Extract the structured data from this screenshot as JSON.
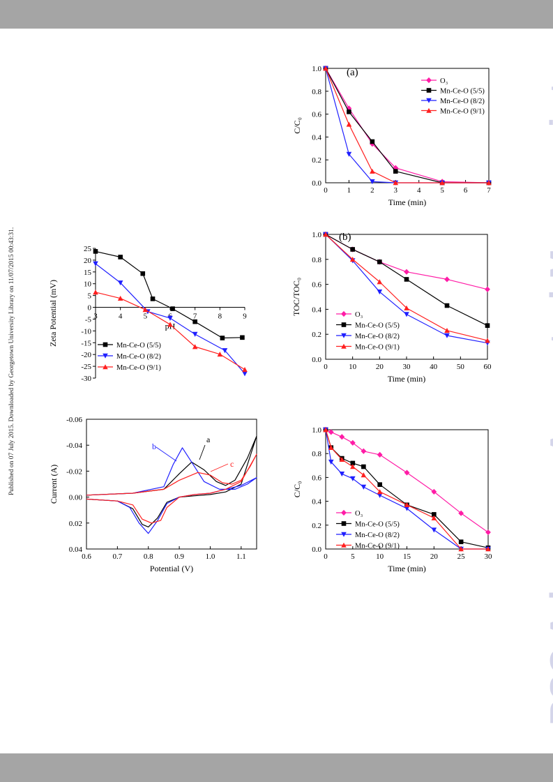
{
  "side_note": "Published on 07 July 2015. Downloaded by Georgetown University Library on 11/07/2015 00:43:31.",
  "watermark": "RSC Advances Accepted Manuscript",
  "colors": {
    "black": "#000000",
    "blue": "#1f1fff",
    "red": "#ff1f1f",
    "magenta": "#ff1ca6",
    "band": "#a5a5a5",
    "watermark": "#d4d5ea"
  },
  "chart_data": [
    {
      "id": "a",
      "type": "line",
      "panel_label": "(a)",
      "xlabel": "Time (min)",
      "ylabel": "C/C₀",
      "xlim": [
        0,
        7
      ],
      "ylim": [
        0,
        1.0
      ],
      "xticks": [
        0,
        1,
        2,
        3,
        4,
        5,
        6,
        7
      ],
      "xtick_labels": [
        "0",
        "1",
        "2",
        "3",
        "4",
        "5",
        "6",
        "7"
      ],
      "yticks": [
        0,
        0.2,
        0.4,
        0.6,
        0.8,
        1.0
      ],
      "ytick_labels": [
        "0.0",
        "0.2",
        "0.4",
        "0.6",
        "0.8",
        "1.0"
      ],
      "legend_position": "top-right",
      "series": [
        {
          "name": "O₃",
          "color": "#ff1ca6",
          "marker": "diamond",
          "x": [
            0,
            1,
            2,
            3,
            5,
            7
          ],
          "y": [
            1.0,
            0.65,
            0.34,
            0.13,
            0.01,
            0.0
          ]
        },
        {
          "name": "Mn-Ce-O (5/5)",
          "color": "#000000",
          "marker": "square",
          "x": [
            0,
            1,
            2,
            3,
            5,
            7
          ],
          "y": [
            1.0,
            0.62,
            0.36,
            0.1,
            0.0,
            0.0
          ]
        },
        {
          "name": "Mn-Ce-O (8/2)",
          "color": "#1f1fff",
          "marker": "triangle-down",
          "x": [
            0,
            1,
            2,
            3,
            5,
            7
          ],
          "y": [
            1.0,
            0.25,
            0.01,
            0.0,
            0.0,
            0.0
          ]
        },
        {
          "name": "Mn-Ce-O (9/1)",
          "color": "#ff1f1f",
          "marker": "triangle-up",
          "x": [
            0,
            1,
            2,
            3,
            5,
            7
          ],
          "y": [
            1.0,
            0.51,
            0.1,
            0.0,
            0.0,
            0.0
          ]
        }
      ]
    },
    {
      "id": "b",
      "type": "line",
      "panel_label": "(b)",
      "xlabel": "Time (min)",
      "ylabel": "TOC/TOC₀",
      "xlim": [
        0,
        60
      ],
      "ylim": [
        0,
        1.0
      ],
      "xticks": [
        0,
        10,
        20,
        30,
        40,
        50,
        60
      ],
      "xtick_labels": [
        "0",
        "10",
        "20",
        "30",
        "40",
        "50",
        "60"
      ],
      "yticks": [
        0,
        0.2,
        0.4,
        0.6,
        0.8,
        1.0
      ],
      "ytick_labels": [
        "0.0",
        "0.2",
        "0.4",
        "0.6",
        "0.8",
        "1.0"
      ],
      "legend_position": "bottom-left",
      "series": [
        {
          "name": "O₃",
          "color": "#ff1ca6",
          "marker": "diamond",
          "x": [
            0,
            10,
            20,
            30,
            45,
            60
          ],
          "y": [
            1.0,
            0.88,
            0.78,
            0.7,
            0.64,
            0.56
          ]
        },
        {
          "name": "Mn-Ce-O (5/5)",
          "color": "#000000",
          "marker": "square",
          "x": [
            0,
            10,
            20,
            30,
            45,
            60
          ],
          "y": [
            1.0,
            0.88,
            0.78,
            0.64,
            0.43,
            0.27
          ]
        },
        {
          "name": "Mn-Ce-O (8/2)",
          "color": "#1f1fff",
          "marker": "triangle-down",
          "x": [
            0,
            10,
            20,
            30,
            45,
            60
          ],
          "y": [
            1.0,
            0.79,
            0.54,
            0.36,
            0.19,
            0.13
          ]
        },
        {
          "name": "Mn-Ce-O (9/1)",
          "color": "#ff1f1f",
          "marker": "triangle-up",
          "x": [
            0,
            10,
            20,
            30,
            45,
            60
          ],
          "y": [
            1.0,
            0.8,
            0.62,
            0.41,
            0.23,
            0.15
          ]
        }
      ]
    },
    {
      "id": "zeta",
      "type": "line",
      "xlabel": "pH",
      "ylabel": "Zeta Potential (mV)",
      "xlim": [
        3,
        9
      ],
      "ylim": [
        -30,
        25
      ],
      "xticks": [
        3,
        4,
        5,
        6,
        7,
        8,
        9
      ],
      "xtick_labels": [
        "3",
        "4",
        "5",
        "6",
        "7",
        "8",
        "9"
      ],
      "yticks": [
        25,
        20,
        15,
        10,
        5,
        0,
        -5,
        -10,
        -15,
        -20,
        -25,
        -30
      ],
      "ytick_labels": [
        "25",
        "20",
        "15",
        "10",
        "5",
        "0",
        "-5",
        "-10",
        "-15",
        "-20",
        "-25",
        "-30"
      ],
      "legend_position": "bottom-left",
      "series": [
        {
          "name": "Mn-Ce-O (5/5)",
          "color": "#000000",
          "marker": "square",
          "x": [
            3,
            4,
            4.9,
            5.3,
            6.1,
            7,
            8.1,
            8.9
          ],
          "y": [
            23.7,
            21.3,
            14.3,
            3.6,
            -0.6,
            -6.1,
            -13,
            -12.8
          ]
        },
        {
          "name": "Mn-Ce-O (8/2)",
          "color": "#1f1fff",
          "marker": "triangle-down",
          "x": [
            3,
            4,
            5.1,
            6,
            7,
            8.2,
            9
          ],
          "y": [
            18.5,
            10.4,
            -1.8,
            -4.6,
            -11.4,
            -18.3,
            -28.1
          ]
        },
        {
          "name": "Mn-Ce-O (9/1)",
          "color": "#ff1f1f",
          "marker": "triangle-up",
          "x": [
            3,
            4,
            5,
            6,
            7,
            8,
            9
          ],
          "y": [
            6.4,
            3.8,
            -1.0,
            -7.3,
            -16.7,
            -19.9,
            -26.4
          ]
        }
      ]
    },
    {
      "id": "cv",
      "type": "line",
      "xlabel": "Potential (V)",
      "ylabel": "Current (A)",
      "xlim": [
        0.6,
        1.15
      ],
      "ylim": [
        -0.06,
        0.04
      ],
      "y_inverted": true,
      "xticks": [
        0.6,
        0.7,
        0.8,
        0.9,
        1.0,
        1.1
      ],
      "xtick_labels": [
        "0.6",
        "0.7",
        "0.8",
        "0.9",
        "1.0",
        "1.1"
      ],
      "yticks": [
        -0.06,
        -0.04,
        -0.02,
        0.0,
        0.02,
        0.04
      ],
      "ytick_labels": [
        "-0.06",
        "-0.04",
        "-0.02",
        "0.00",
        "0.02",
        "0.04"
      ],
      "annotations": [
        "a",
        "b",
        "c"
      ],
      "series": [
        {
          "name": "a",
          "color": "#000000",
          "x": [
            0.6,
            0.75,
            0.85,
            0.9,
            0.94,
            0.98,
            1.02,
            1.05,
            1.08,
            1.12,
            1.15,
            1.15,
            1.1,
            1.05,
            1.0,
            0.95,
            0.9,
            0.86,
            0.83,
            0.8,
            0.78,
            0.75,
            0.7,
            0.6
          ],
          "y": [
            -0.0015,
            -0.003,
            -0.006,
            -0.018,
            -0.027,
            -0.021,
            -0.012,
            -0.009,
            -0.013,
            -0.03,
            -0.047,
            -0.047,
            -0.01,
            -0.004,
            -0.002,
            -0.001,
            0.0,
            0.004,
            0.016,
            0.023,
            0.021,
            0.009,
            0.003,
            0.0015
          ]
        },
        {
          "name": "b",
          "color": "#1f1fff",
          "x": [
            0.6,
            0.75,
            0.85,
            0.88,
            0.91,
            0.94,
            0.98,
            1.03,
            1.08,
            1.12,
            1.15,
            1.15,
            1.1,
            1.05,
            1.0,
            0.95,
            0.9,
            0.86,
            0.83,
            0.8,
            0.77,
            0.74,
            0.7,
            0.6
          ],
          "y": [
            -0.0015,
            -0.003,
            -0.008,
            -0.025,
            -0.038,
            -0.027,
            -0.012,
            -0.006,
            -0.006,
            -0.01,
            -0.015,
            -0.015,
            -0.009,
            -0.006,
            -0.003,
            -0.002,
            0.0,
            0.005,
            0.018,
            0.028,
            0.02,
            0.008,
            0.003,
            0.0015
          ]
        },
        {
          "name": "c",
          "color": "#ff1f1f",
          "x": [
            0.6,
            0.75,
            0.85,
            0.9,
            0.96,
            1.0,
            1.04,
            1.07,
            1.1,
            1.13,
            1.15,
            1.15,
            1.1,
            1.05,
            1.0,
            0.95,
            0.9,
            0.86,
            0.84,
            0.81,
            0.78,
            0.75,
            0.7,
            0.6
          ],
          "y": [
            -0.0015,
            -0.003,
            -0.006,
            -0.013,
            -0.019,
            -0.017,
            -0.011,
            -0.01,
            -0.013,
            -0.024,
            -0.033,
            -0.033,
            -0.012,
            -0.006,
            -0.003,
            -0.002,
            0.0,
            0.008,
            0.018,
            0.02,
            0.017,
            0.006,
            0.003,
            0.0015
          ]
        }
      ]
    },
    {
      "id": "c",
      "type": "line",
      "xlabel": "Time (min)",
      "ylabel": "C/C₀",
      "xlim": [
        0,
        30
      ],
      "ylim": [
        0,
        1.0
      ],
      "xticks": [
        0,
        5,
        10,
        15,
        20,
        25,
        30
      ],
      "xtick_labels": [
        "0",
        "5",
        "10",
        "15",
        "20",
        "25",
        "30"
      ],
      "yticks": [
        0,
        0.2,
        0.4,
        0.6,
        0.8,
        1.0
      ],
      "ytick_labels": [
        "0.0",
        "0.2",
        "0.4",
        "0.6",
        "0.8",
        "1.0"
      ],
      "legend_position": "bottom-left",
      "series": [
        {
          "name": "O₃",
          "color": "#ff1ca6",
          "marker": "diamond",
          "x": [
            0,
            1,
            3,
            5,
            7,
            10,
            15,
            20,
            25,
            30
          ],
          "y": [
            1.0,
            0.98,
            0.94,
            0.89,
            0.82,
            0.79,
            0.64,
            0.48,
            0.3,
            0.14
          ]
        },
        {
          "name": "Mn-Ce-O (5/5)",
          "color": "#000000",
          "marker": "square",
          "x": [
            0,
            1,
            3,
            5,
            7,
            10,
            15,
            20,
            25,
            30
          ],
          "y": [
            1.0,
            0.85,
            0.76,
            0.72,
            0.69,
            0.54,
            0.37,
            0.29,
            0.06,
            0.01
          ]
        },
        {
          "name": "Mn-Ce-O (8/2)",
          "color": "#1f1fff",
          "marker": "triangle-down",
          "x": [
            0,
            1,
            3,
            5,
            7,
            10,
            15,
            20,
            25,
            30
          ],
          "y": [
            1.0,
            0.73,
            0.63,
            0.59,
            0.52,
            0.45,
            0.34,
            0.16,
            0.0,
            0.0
          ]
        },
        {
          "name": "Mn-Ce-O (9/1)",
          "color": "#ff1f1f",
          "marker": "triangle-up",
          "x": [
            0,
            1,
            3,
            5,
            7,
            10,
            15,
            20,
            25,
            30
          ],
          "y": [
            1.0,
            0.85,
            0.75,
            0.69,
            0.62,
            0.48,
            0.37,
            0.26,
            0.0,
            0.0
          ]
        }
      ]
    }
  ]
}
